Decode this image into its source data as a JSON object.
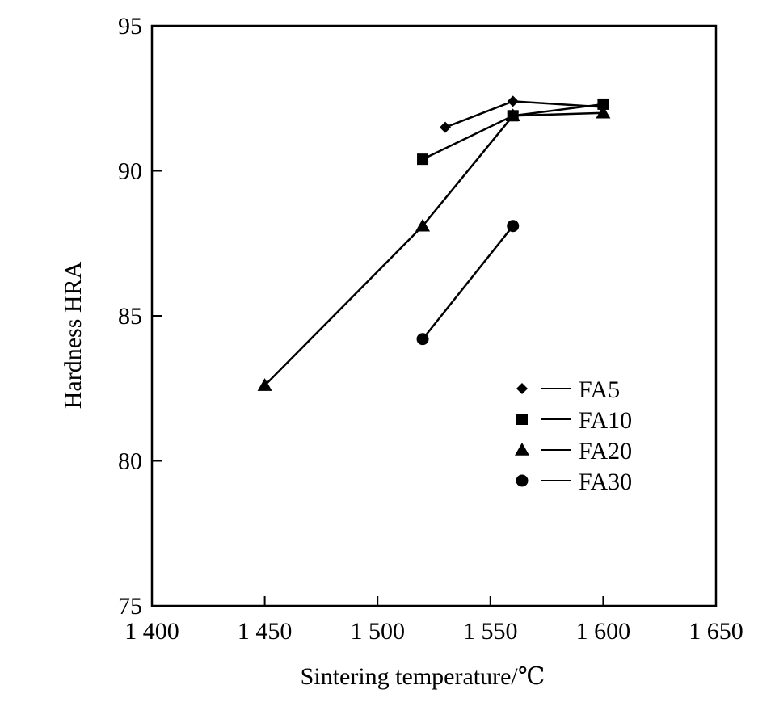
{
  "chart_data": {
    "type": "line",
    "xlabel": "Sintering temperature/℃",
    "ylabel": "Hardness HRA",
    "xlim": [
      1400,
      1650
    ],
    "ylim": [
      75,
      95
    ],
    "x_ticks": [
      1400,
      1450,
      1500,
      1550,
      1600,
      1650
    ],
    "x_tick_labels": [
      "1 400",
      "1 450",
      "1 500",
      "1 550",
      "1 600",
      "1 650"
    ],
    "y_ticks": [
      75,
      80,
      85,
      90,
      95
    ],
    "y_tick_labels": [
      "75",
      "80",
      "85",
      "90",
      "95"
    ],
    "grid": false,
    "legend_position": "lower-right",
    "series": [
      {
        "name": "FA5",
        "marker": "diamond",
        "x": [
          1530,
          1560,
          1600
        ],
        "y": [
          91.5,
          92.4,
          92.2
        ]
      },
      {
        "name": "FA10",
        "marker": "square",
        "x": [
          1520,
          1560,
          1600
        ],
        "y": [
          90.4,
          91.9,
          92.3
        ]
      },
      {
        "name": "FA20",
        "marker": "triangle",
        "x": [
          1450,
          1520,
          1560,
          1600
        ],
        "y": [
          82.6,
          88.1,
          91.9,
          92.0
        ]
      },
      {
        "name": "FA30",
        "marker": "circle",
        "x": [
          1520,
          1560
        ],
        "y": [
          84.2,
          88.1
        ]
      }
    ]
  }
}
